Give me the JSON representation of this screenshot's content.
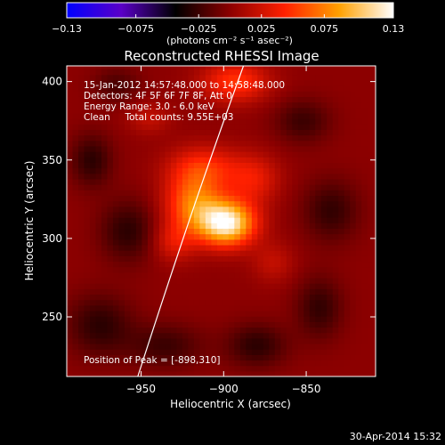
{
  "chart_data": {
    "type": "heatmap",
    "title": "Reconstructed RHESSI Image",
    "xlabel": "Heliocentric X (arcsec)",
    "ylabel": "Heliocentric Y (arcsec)",
    "xlim": [
      -995,
      -808
    ],
    "ylim": [
      212,
      410
    ],
    "x_ticks": [
      -950,
      -900,
      -850
    ],
    "y_ticks": [
      250,
      300,
      350,
      400
    ],
    "x_tick_labels": [
      "−950",
      "−900",
      "−850"
    ],
    "y_tick_labels": [
      "250",
      "300",
      "350",
      "400"
    ],
    "colorbar": {
      "range": [
        -0.13,
        0.13
      ],
      "ticks": [
        -0.13,
        -0.075,
        -0.025,
        0.025,
        0.075,
        0.13
      ],
      "tick_labels": [
        "−0.13",
        "−0.075",
        "−0.025",
        "0.025",
        "0.075",
        "0.13"
      ],
      "unit_label": "(photons cm⁻² s⁻¹ asec⁻²)",
      "colormap": [
        "#0000ff",
        "#5a00c8",
        "#000000",
        "#8c0000",
        "#ff2000",
        "#ffa000",
        "#ffffff"
      ]
    },
    "annotations": [
      "15-Jan-2012 14:57:48.000 to 14:58:48.000",
      "Detectors: 4F 5F 6F 7F 8F, Att 0",
      "Energy Range: 3.0 - 6.0 keV",
      "Clean     Total counts: 9.55E+03"
    ],
    "peak_label": "Position of Peak = [-898,310]",
    "peak": {
      "x": -898,
      "y": 310,
      "value": 0.13
    },
    "sources": [
      {
        "x": -898,
        "y": 310,
        "sx": 12,
        "sy": 10,
        "amp": 0.125
      },
      {
        "x": -918,
        "y": 322,
        "sx": 12,
        "sy": 13,
        "amp": 0.07
      },
      {
        "x": -912,
        "y": 345,
        "sx": 15,
        "sy": 10,
        "amp": 0.045
      },
      {
        "x": -882,
        "y": 338,
        "sx": 11,
        "sy": 11,
        "amp": 0.035
      },
      {
        "x": -930,
        "y": 298,
        "sx": 9,
        "sy": 9,
        "amp": 0.03
      },
      {
        "x": -893,
        "y": 400,
        "sx": 14,
        "sy": 9,
        "amp": 0.05
      },
      {
        "x": -945,
        "y": 377,
        "sx": 9,
        "sy": 7,
        "amp": 0.02
      },
      {
        "x": -870,
        "y": 285,
        "sx": 9,
        "sy": 9,
        "amp": 0.02
      },
      {
        "x": -980,
        "y": 350,
        "sx": 9,
        "sy": 12,
        "amp": -0.03
      },
      {
        "x": -958,
        "y": 305,
        "sx": 12,
        "sy": 14,
        "amp": -0.03
      },
      {
        "x": -975,
        "y": 245,
        "sx": 14,
        "sy": 14,
        "amp": -0.03
      },
      {
        "x": -935,
        "y": 232,
        "sx": 16,
        "sy": 10,
        "amp": -0.025
      },
      {
        "x": -880,
        "y": 232,
        "sx": 13,
        "sy": 10,
        "amp": -0.03
      },
      {
        "x": -842,
        "y": 256,
        "sx": 10,
        "sy": 14,
        "amp": -0.028
      },
      {
        "x": -835,
        "y": 318,
        "sx": 12,
        "sy": 14,
        "amp": -0.028
      },
      {
        "x": -852,
        "y": 375,
        "sx": 12,
        "sy": 10,
        "amp": -0.025
      },
      {
        "x": -965,
        "y": 398,
        "sx": 10,
        "sy": 8,
        "amp": -0.02
      }
    ],
    "limb_curve": {
      "points": [
        [
          -952,
          212
        ],
        [
          -928,
          290
        ],
        [
          -912,
          340
        ],
        [
          -888,
          410
        ]
      ]
    }
  },
  "timestamp": "30-Apr-2014 15:32"
}
